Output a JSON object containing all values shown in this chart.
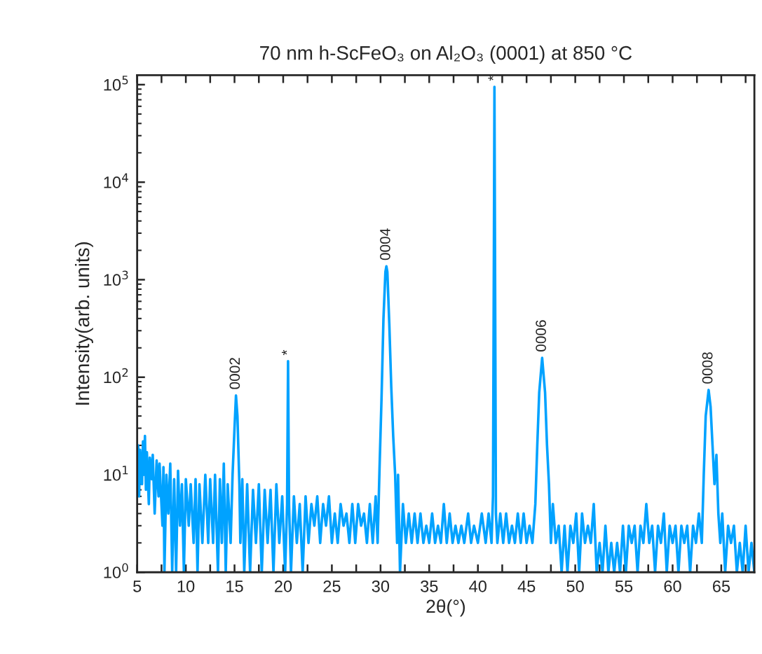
{
  "chart_data": {
    "type": "line",
    "title": "70 nm h-ScFeO₃ on Al₂O₃ (0001) at 850 °C",
    "xlabel": "2θ(°)",
    "ylabel": "Intensity(arb. units)",
    "log": "y",
    "grid": false,
    "legend": false,
    "xlim": [
      5,
      68.4
    ],
    "ylim": [
      1,
      125000
    ],
    "xticks": [
      5,
      {
        "value": 7.5,
        "label": null
      },
      10,
      {
        "value": 12.5,
        "label": null
      },
      15,
      {
        "value": 17.5,
        "label": null
      },
      20,
      {
        "value": 22.5,
        "label": null
      },
      25,
      {
        "value": 27.5,
        "label": null
      },
      30,
      {
        "value": 32.5,
        "label": null
      },
      35,
      {
        "value": 37.5,
        "label": null
      },
      40,
      {
        "value": 42.5,
        "label": null
      },
      45,
      {
        "value": 47.5,
        "label": null
      },
      50,
      {
        "value": 52.5,
        "label": null
      },
      55,
      {
        "value": 57.5,
        "label": null
      },
      60,
      {
        "value": 62.5,
        "label": null
      },
      65,
      {
        "value": 67.5,
        "label": null
      }
    ],
    "yticks": [
      {
        "value": 1,
        "label": "10$^{0}$"
      },
      {
        "value": 10,
        "label": "10$^{1}$"
      },
      {
        "value": 100,
        "label": "10$^{2}$"
      },
      {
        "value": 1000,
        "label": "10$^{3}$"
      },
      {
        "value": 10000,
        "label": "10$^{4}$"
      },
      {
        "value": 100000,
        "label": "10$^{5}$"
      }
    ],
    "annotations": [
      {
        "text": "0002",
        "x": 15.15,
        "y": 65
      },
      {
        "text": "*",
        "x": 20.5,
        "y": 146
      },
      {
        "text": "0004",
        "x": 30.6,
        "y": 1370
      },
      {
        "text": "*",
        "x": 41.7,
        "y": 95000
      },
      {
        "text": "0006",
        "x": 46.6,
        "y": 158
      },
      {
        "text": "0008",
        "x": 63.7,
        "y": 74
      }
    ],
    "series": [
      {
        "color": "#00a2ff",
        "x": [
          5.0,
          5.1,
          5.2,
          5.3,
          5.5,
          5.6,
          5.7,
          5.8,
          5.9,
          6.0,
          6.2,
          6.3,
          6.5,
          6.6,
          6.8,
          7.0,
          7.2,
          7.3,
          7.6,
          7.7,
          7.8,
          8.0,
          8.2,
          8.4,
          8.6,
          8.8,
          9.0,
          9.2,
          9.4,
          9.6,
          9.8,
          10.0,
          10.3,
          10.5,
          10.8,
          11.0,
          11.2,
          11.4,
          11.7,
          12.0,
          12.3,
          12.5,
          12.8,
          13.0,
          13.3,
          13.5,
          13.7,
          13.9,
          14.1,
          14.3,
          14.6,
          14.8,
          15.0,
          15.15,
          15.3,
          15.5,
          15.6,
          15.8,
          16.0,
          16.3,
          16.6,
          16.9,
          17.2,
          17.5,
          17.8,
          18.1,
          18.4,
          18.7,
          19.0,
          19.3,
          19.6,
          19.9,
          20.2,
          20.4,
          20.5,
          20.6,
          20.8,
          21.1,
          21.4,
          21.7,
          22.0,
          22.3,
          22.6,
          22.9,
          23.2,
          23.5,
          23.8,
          24.1,
          24.4,
          24.7,
          25.0,
          25.3,
          25.6,
          25.9,
          26.2,
          26.5,
          26.8,
          27.1,
          27.4,
          27.7,
          28.0,
          28.3,
          28.6,
          28.9,
          29.2,
          29.5,
          29.7,
          29.9,
          30.1,
          30.3,
          30.5,
          30.6,
          30.7,
          30.9,
          31.1,
          31.3,
          31.5,
          31.7,
          31.8,
          32.0,
          32.3,
          32.6,
          32.9,
          33.2,
          33.5,
          33.8,
          34.1,
          34.4,
          34.7,
          35.0,
          35.3,
          35.6,
          35.9,
          36.2,
          36.5,
          36.8,
          37.1,
          37.4,
          37.7,
          38.0,
          38.3,
          38.6,
          39.0,
          39.3,
          39.6,
          40.0,
          40.4,
          40.8,
          41.1,
          41.4,
          41.55,
          41.65,
          41.7,
          41.75,
          41.85,
          42.0,
          42.3,
          42.6,
          42.9,
          43.2,
          43.5,
          43.8,
          44.1,
          44.4,
          44.7,
          45.0,
          45.3,
          45.6,
          45.9,
          46.1,
          46.3,
          46.6,
          46.9,
          47.1,
          47.3,
          47.5,
          47.7,
          48.0,
          48.3,
          48.6,
          48.9,
          49.2,
          49.5,
          49.8,
          50.1,
          50.4,
          50.7,
          51.0,
          51.3,
          51.6,
          51.9,
          52.2,
          52.5,
          52.8,
          53.1,
          53.4,
          53.7,
          54.0,
          54.3,
          54.6,
          54.9,
          55.2,
          55.5,
          55.8,
          56.1,
          56.4,
          56.7,
          57.0,
          57.3,
          57.6,
          57.9,
          58.2,
          58.5,
          58.8,
          59.1,
          59.4,
          59.7,
          60.0,
          60.3,
          60.6,
          60.9,
          61.2,
          61.5,
          61.8,
          62.1,
          62.4,
          62.7,
          63.0,
          63.2,
          63.4,
          63.7,
          63.9,
          64.1,
          64.3,
          64.5,
          64.7,
          64.9,
          65.1,
          65.4,
          65.7,
          66.0,
          66.3,
          66.6,
          66.9,
          67.2,
          67.5,
          67.8,
          68.1,
          68.4
        ],
        "values": [
          12,
          20,
          6,
          18,
          8,
          22,
          10,
          25,
          7,
          17,
          5,
          15,
          9,
          16,
          4,
          14,
          6,
          13,
          3,
          12,
          1,
          10,
          4,
          13,
          1,
          9,
          1,
          11,
          3,
          8,
          1,
          9,
          3,
          8,
          2,
          9,
          1,
          8,
          2,
          10,
          2,
          9,
          2,
          10,
          1,
          9,
          2,
          13,
          1,
          8,
          2,
          10,
          30,
          65,
          40,
          8,
          2,
          9,
          1,
          8,
          1,
          7,
          2,
          8,
          1,
          7,
          2,
          7,
          1,
          8,
          2,
          6,
          1,
          5,
          146,
          5,
          1,
          6,
          2,
          5,
          1,
          6,
          2,
          5,
          3,
          6,
          2,
          5,
          3,
          6,
          2,
          4,
          2,
          5,
          3,
          4,
          2,
          5,
          2,
          5,
          3,
          4,
          2,
          5,
          2,
          6,
          2,
          12,
          60,
          400,
          1200,
          1370,
          1200,
          350,
          80,
          25,
          10,
          2,
          10,
          1,
          5,
          2,
          4,
          2,
          4,
          2,
          4,
          2,
          3,
          2,
          4,
          2,
          3,
          2,
          5,
          2,
          4,
          2,
          3,
          2,
          3,
          2,
          4,
          2,
          3,
          2,
          4,
          2,
          4,
          2,
          6,
          3000,
          95000,
          3000,
          4,
          2,
          4,
          2,
          4,
          2,
          3,
          2,
          4,
          2,
          4,
          2,
          3,
          2,
          5,
          20,
          70,
          158,
          70,
          20,
          8,
          2,
          5,
          2,
          3,
          1,
          3,
          1,
          3,
          2,
          4,
          1,
          4,
          2,
          3,
          2,
          5,
          1,
          2,
          1,
          3,
          1,
          2,
          1,
          2,
          1,
          3,
          1,
          3,
          2,
          3,
          1,
          3,
          2,
          5,
          2,
          3,
          1,
          3,
          2,
          4,
          1,
          3,
          2,
          3,
          1,
          3,
          2,
          3,
          1,
          3,
          2,
          4,
          2,
          10,
          40,
          74,
          50,
          20,
          8,
          16,
          4,
          2,
          4,
          1,
          3,
          2,
          3,
          1,
          2,
          1,
          3,
          1,
          2,
          1
        ]
      }
    ]
  }
}
